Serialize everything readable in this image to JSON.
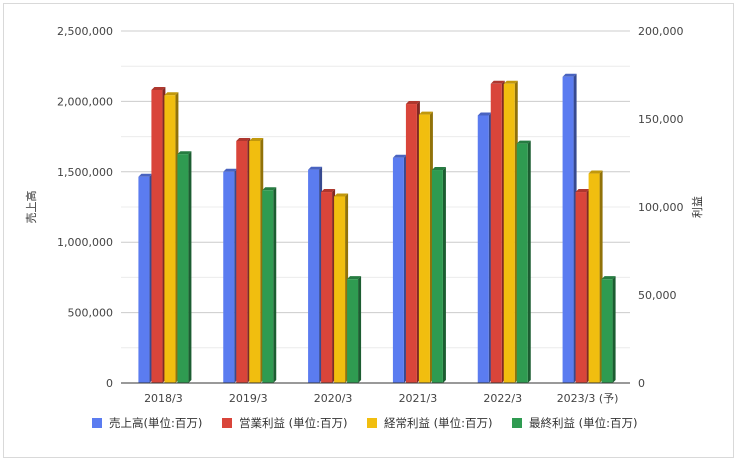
{
  "chart_data": {
    "type": "bar",
    "categories": [
      "2018/3",
      "2019/3",
      "2020/3",
      "2021/3",
      "2022/3",
      "2023/3 (予)"
    ],
    "y_left": {
      "label": "売上高",
      "ylim": [
        0,
        2500000
      ],
      "ticks": [
        "0",
        "500,000",
        "1,000,000",
        "1,500,000",
        "2,000,000",
        "2,500,000"
      ],
      "tick_values": [
        0,
        500000,
        1000000,
        1500000,
        2000000,
        2500000
      ]
    },
    "y_right": {
      "label": "利益",
      "ylim": [
        0,
        200000
      ],
      "ticks": [
        "0",
        "50,000",
        "100,000",
        "150,000",
        "200,000"
      ],
      "tick_values": [
        0,
        50000,
        100000,
        150000,
        200000
      ]
    },
    "series": [
      {
        "name": "売上高(単位:百万)",
        "axis": "left",
        "color": "#5b7cf0",
        "values": [
          1465000,
          1500000,
          1515000,
          1600000,
          1900000,
          2175000
        ]
      },
      {
        "name": "営業利益 (単位:百万)",
        "axis": "right",
        "color": "#d9453a",
        "values": [
          166500,
          137500,
          108500,
          158500,
          170000,
          108500
        ]
      },
      {
        "name": "経常利益 (単位:百万)",
        "axis": "right",
        "color": "#f1be0f",
        "values": [
          163500,
          137500,
          106000,
          152500,
          170000,
          119000
        ]
      },
      {
        "name": "最終利益 (単位:百万)",
        "axis": "right",
        "color": "#2f9b51",
        "values": [
          130000,
          109500,
          59000,
          121000,
          136000,
          59000
        ]
      }
    ],
    "grid": true,
    "legend_position": "bottom"
  }
}
